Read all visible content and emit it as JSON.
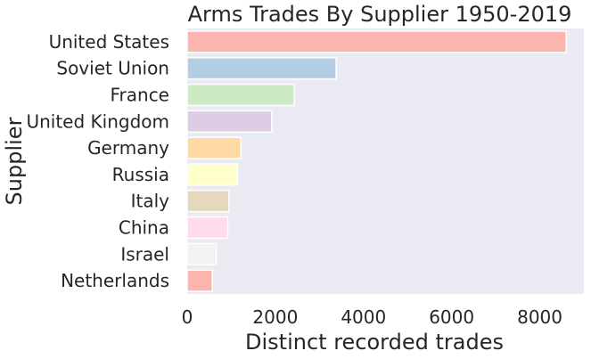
{
  "chart_data": {
    "type": "bar",
    "orientation": "horizontal",
    "title": "Arms Trades By Supplier 1950-2019",
    "xlabel": "Distinct recorded trades",
    "ylabel": "Supplier",
    "categories": [
      "United States",
      "Soviet Union",
      "France",
      "United Kingdom",
      "Germany",
      "Russia",
      "Italy",
      "China",
      "Israel",
      "Netherlands"
    ],
    "values": [
      8600,
      3380,
      2430,
      1920,
      1220,
      1140,
      950,
      920,
      660,
      570
    ],
    "colors": [
      "#fbb4ae",
      "#b3cde3",
      "#ccebc5",
      "#decbe4",
      "#fed9a6",
      "#ffffcc",
      "#e5d8bd",
      "#fddaec",
      "#f2f2f2",
      "#fbb4ae"
    ],
    "xlim": [
      0,
      9000
    ],
    "xticks": [
      "0",
      "2000",
      "4000",
      "6000",
      "8000"
    ],
    "grid": false,
    "background": "#eaeaf2"
  }
}
